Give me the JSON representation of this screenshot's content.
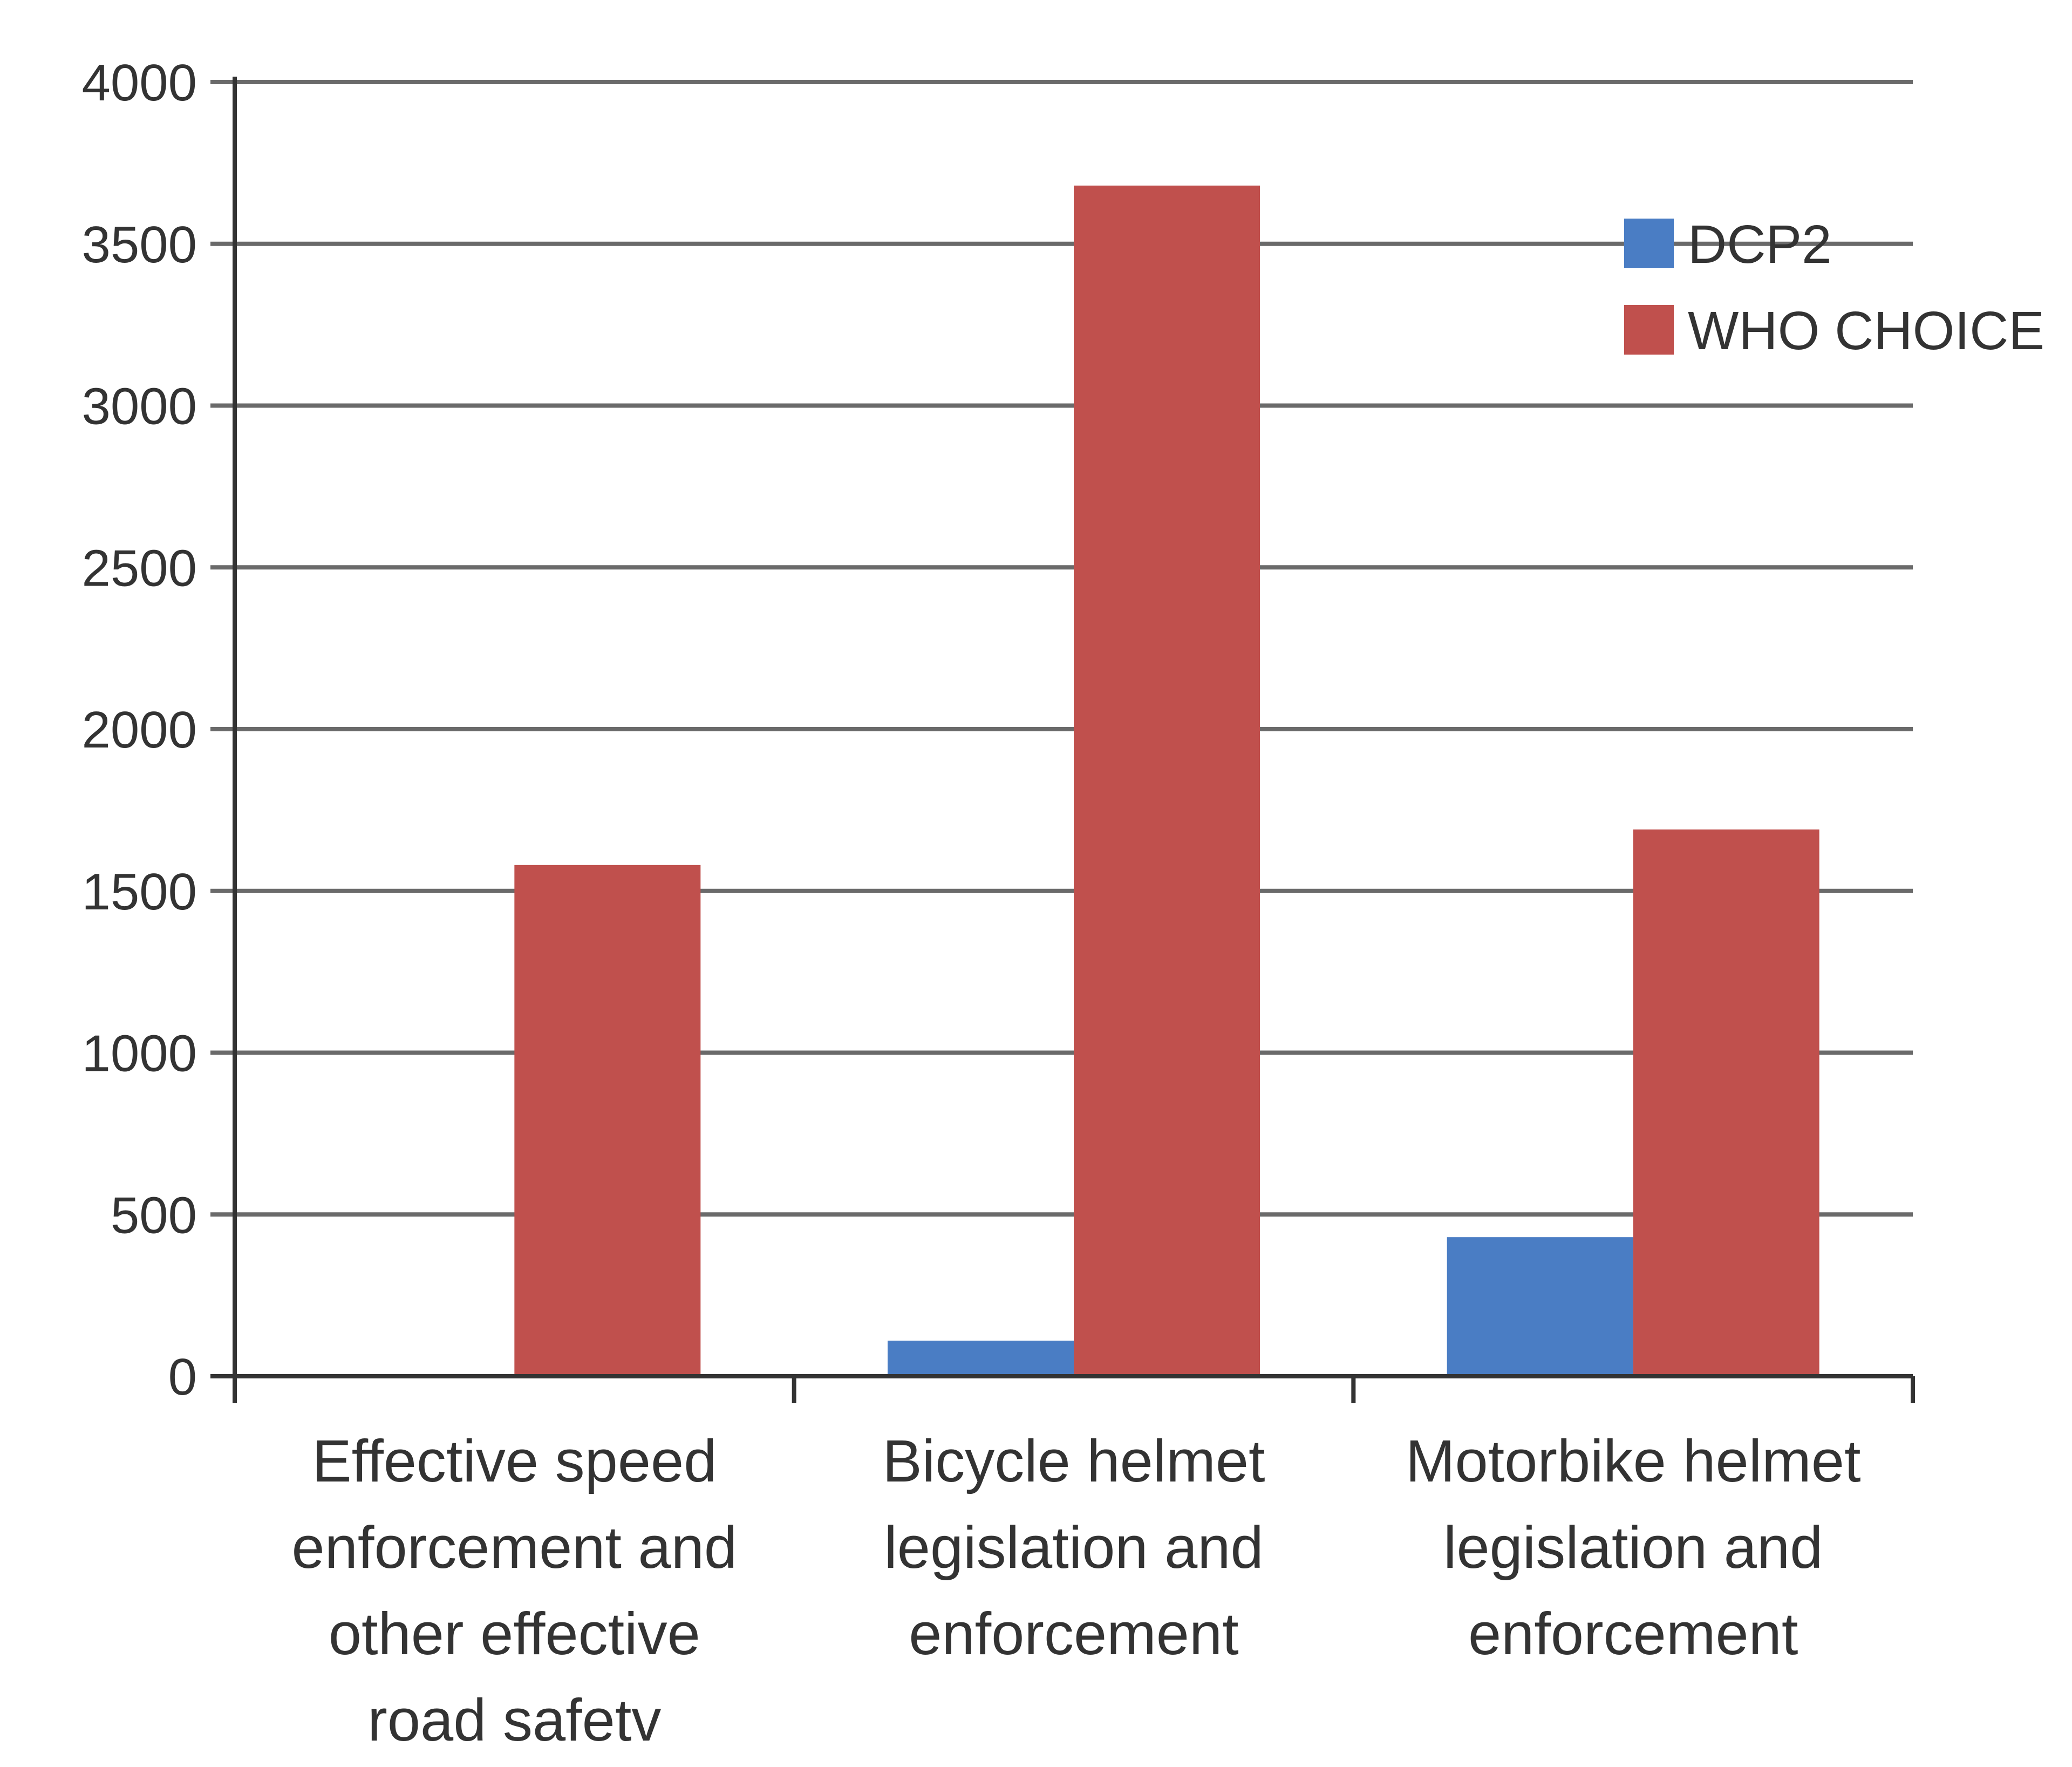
{
  "chart_data": {
    "type": "bar",
    "categories": [
      [
        "Effective speed",
        "enforcement and",
        "other effective",
        "road safetv"
      ],
      [
        "Bicycle helmet",
        "legislation and",
        "enforcement"
      ],
      [
        "Motorbike helmet",
        "legislation and",
        "enforcement"
      ]
    ],
    "series": [
      {
        "name": "DCP2",
        "color": "#4a7dc4",
        "values": [
          0,
          110,
          430
        ]
      },
      {
        "name": "WHO CHOICE",
        "color": "#c0504d",
        "values": [
          1580,
          3680,
          1690
        ]
      }
    ],
    "ylim": [
      0,
      4000
    ],
    "yticks": [
      "0",
      "500",
      "1000",
      "1500",
      "2000",
      "2500",
      "3000",
      "3500",
      "4000"
    ],
    "grid": true,
    "legend": "top-right"
  }
}
